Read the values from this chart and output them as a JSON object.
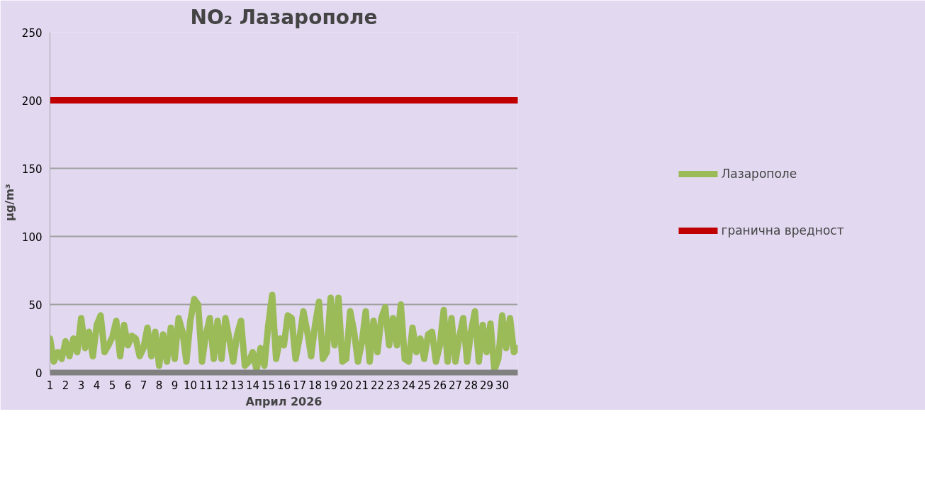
{
  "chart_data": {
    "type": "line",
    "title": "NO₂ Лазарополе",
    "xlabel": "Април 2026",
    "ylabel": "µg/m³",
    "xlim": [
      1,
      31
    ],
    "xticks": [
      1,
      2,
      3,
      4,
      5,
      6,
      7,
      8,
      9,
      10,
      11,
      12,
      13,
      14,
      15,
      16,
      17,
      18,
      19,
      20,
      21,
      22,
      23,
      24,
      25,
      26,
      27,
      28,
      29,
      30
    ],
    "ylim": [
      0,
      250
    ],
    "yticks": [
      0,
      50,
      100,
      150,
      200,
      250
    ],
    "grid": "y",
    "legend": "right",
    "line_style": "solid",
    "series": [
      {
        "name": "Лазарополе",
        "color": "#9bbb59",
        "x": [
          1,
          1.25,
          1.5,
          1.75,
          2,
          2.25,
          2.5,
          2.75,
          3,
          3.25,
          3.5,
          3.75,
          4,
          4.25,
          4.5,
          4.75,
          5,
          5.25,
          5.5,
          5.75,
          6,
          6.25,
          6.5,
          6.75,
          7,
          7.25,
          7.5,
          7.75,
          8,
          8.25,
          8.5,
          8.75,
          9,
          9.25,
          9.5,
          9.75,
          10,
          10.25,
          10.5,
          10.75,
          11,
          11.25,
          11.5,
          11.75,
          12,
          12.25,
          12.5,
          12.75,
          13,
          13.25,
          13.5,
          13.75,
          14,
          14.25,
          14.5,
          14.75,
          15,
          15.25,
          15.5,
          15.75,
          16,
          16.25,
          16.5,
          16.75,
          17,
          17.25,
          17.5,
          17.75,
          18,
          18.25,
          18.5,
          18.75,
          19,
          19.25,
          19.5,
          19.75,
          20,
          20.25,
          20.5,
          20.75,
          21,
          21.25,
          21.5,
          21.75,
          22,
          22.25,
          22.5,
          22.75,
          23,
          23.25,
          23.5,
          23.75,
          24,
          24.25,
          24.5,
          24.75,
          25,
          25.25,
          25.5,
          25.75,
          26,
          26.25,
          26.5,
          26.75,
          27,
          27.25,
          27.5,
          27.75,
          28,
          28.25,
          28.5,
          28.75,
          29,
          29.25,
          29.5,
          29.75,
          30,
          30.25,
          30.5,
          30.75,
          31
        ],
        "values": [
          25,
          8,
          15,
          10,
          23,
          12,
          25,
          15,
          40,
          18,
          30,
          12,
          35,
          42,
          15,
          20,
          26,
          38,
          12,
          35,
          20,
          27,
          25,
          12,
          18,
          33,
          12,
          30,
          5,
          28,
          8,
          33,
          10,
          40,
          30,
          8,
          38,
          54,
          50,
          8,
          28,
          40,
          10,
          38,
          10,
          40,
          25,
          8,
          28,
          38,
          5,
          8,
          15,
          2,
          18,
          5,
          35,
          57,
          10,
          25,
          20,
          42,
          40,
          10,
          25,
          45,
          30,
          12,
          35,
          52,
          10,
          15,
          55,
          20,
          55,
          8,
          10,
          45,
          30,
          8,
          22,
          45,
          8,
          38,
          15,
          40,
          48,
          20,
          40,
          20,
          50,
          10,
          8,
          33,
          15,
          25,
          10,
          28,
          30,
          8,
          20,
          46,
          8,
          40,
          8,
          26,
          40,
          8,
          30,
          45,
          8,
          35,
          15,
          36,
          2,
          10,
          42,
          18,
          40,
          15,
          18
        ]
      },
      {
        "name": "гранична вредност",
        "color": "#c00000",
        "x": [
          1,
          31
        ],
        "values": [
          200,
          200
        ]
      }
    ]
  }
}
